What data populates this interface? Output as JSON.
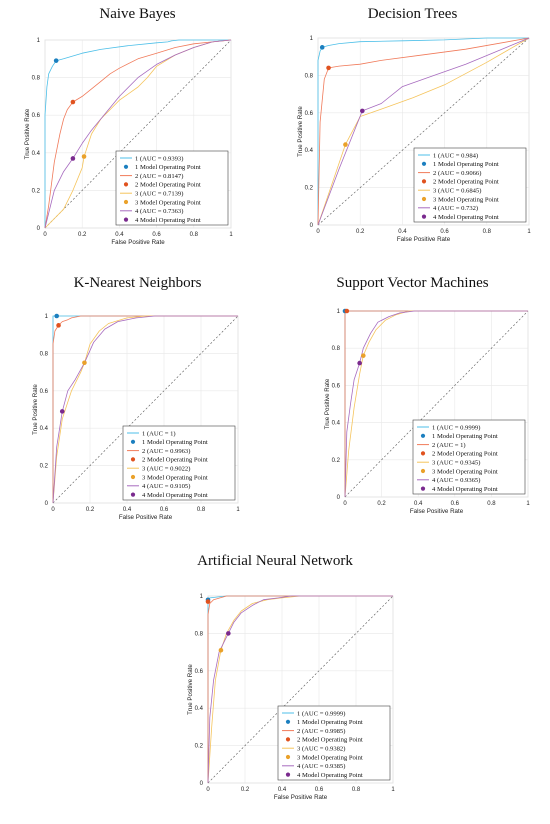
{
  "colors": {
    "model1": "#4cbfe8",
    "model2": "#f07a5a",
    "model3": "#f5c45c",
    "model4": "#a76bbf",
    "op1": "#1b7fbf",
    "op2": "#e0521f",
    "op3": "#eaa12a",
    "op4": "#7a2a8e"
  },
  "chart_data": [
    {
      "type": "line",
      "title": "Naive Bayes",
      "xlabel": "False Positive Rate",
      "ylabel": "True Positive Rate",
      "xlim": [
        0,
        1
      ],
      "ylim": [
        0,
        1
      ],
      "xticks": [
        "0",
        "0.2",
        "0.4",
        "0.6",
        "0.8",
        "1"
      ],
      "yticks": [
        "0",
        "0.2",
        "0.4",
        "0.6",
        "0.8",
        "1"
      ],
      "grid": true,
      "legend_position": "lower-right",
      "series": [
        {
          "name": "1 (AUC = 0.9393)",
          "op_label": "1 Model Operating Point",
          "op": [
            0.06,
            0.89
          ],
          "x": [
            0,
            0,
            0.01,
            0.02,
            0.04,
            0.06,
            0.1,
            0.2,
            0.3,
            0.45,
            0.6,
            0.66,
            0.68,
            0.72,
            0.8,
            0.9,
            1
          ],
          "y": [
            0,
            0.6,
            0.75,
            0.82,
            0.86,
            0.89,
            0.9,
            0.93,
            0.95,
            0.97,
            0.985,
            0.99,
            0.995,
            1,
            1,
            1,
            1
          ]
        },
        {
          "name": "2 (AUC = 0.8147)",
          "op_label": "2 Model Operating Point",
          "op": [
            0.15,
            0.67
          ],
          "x": [
            0,
            0.02,
            0.05,
            0.08,
            0.1,
            0.12,
            0.15,
            0.2,
            0.25,
            0.3,
            0.35,
            0.4,
            0.5,
            0.6,
            0.7,
            0.8,
            0.9,
            1
          ],
          "y": [
            0,
            0.12,
            0.35,
            0.5,
            0.58,
            0.63,
            0.67,
            0.7,
            0.74,
            0.78,
            0.82,
            0.85,
            0.9,
            0.93,
            0.96,
            0.98,
            0.99,
            1
          ]
        },
        {
          "name": "3 (AUC = 0.7139)",
          "op_label": "3 Model Operating Point",
          "op": [
            0.21,
            0.38
          ],
          "x": [
            0,
            0.05,
            0.1,
            0.15,
            0.2,
            0.21,
            0.25,
            0.3,
            0.35,
            0.4,
            0.5,
            0.55,
            0.6,
            0.7,
            0.8,
            0.9,
            1
          ],
          "y": [
            0,
            0.05,
            0.1,
            0.2,
            0.32,
            0.38,
            0.5,
            0.58,
            0.63,
            0.68,
            0.75,
            0.8,
            0.86,
            0.92,
            0.96,
            0.99,
            1
          ]
        },
        {
          "name": "4 (AUC = 0.7363)",
          "op_label": "4 Model Operating Point",
          "op": [
            0.15,
            0.37
          ],
          "x": [
            0,
            0.02,
            0.05,
            0.1,
            0.15,
            0.2,
            0.25,
            0.3,
            0.4,
            0.5,
            0.6,
            0.7,
            0.8,
            0.9,
            1
          ],
          "y": [
            0,
            0.08,
            0.2,
            0.3,
            0.37,
            0.45,
            0.52,
            0.58,
            0.7,
            0.8,
            0.87,
            0.92,
            0.96,
            0.99,
            1
          ]
        }
      ]
    },
    {
      "type": "line",
      "title": "Decision Trees",
      "xlabel": "False Positive Rate",
      "ylabel": "True Positive Rate",
      "xlim": [
        0,
        1
      ],
      "ylim": [
        0,
        1
      ],
      "xticks": [
        "0",
        "0.2",
        "0.4",
        "0.6",
        "0.8",
        "1"
      ],
      "yticks": [
        "0",
        "0.2",
        "0.4",
        "0.6",
        "0.8",
        "1"
      ],
      "grid": true,
      "legend_position": "lower-right",
      "series": [
        {
          "name": "1 (AUC = 0.984)",
          "op_label": "1 Model Operating Point",
          "op": [
            0.02,
            0.95
          ],
          "x": [
            0,
            0,
            0.01,
            0.02,
            0.05,
            0.1,
            0.2,
            0.4,
            0.6,
            0.8,
            1
          ],
          "y": [
            0,
            0.88,
            0.93,
            0.95,
            0.96,
            0.97,
            0.98,
            0.985,
            0.99,
            1,
            1
          ]
        },
        {
          "name": "2 (AUC = 0.9066)",
          "op_label": "2 Model Operating Point",
          "op": [
            0.05,
            0.84
          ],
          "x": [
            0,
            0.01,
            0.03,
            0.05,
            0.1,
            0.2,
            0.3,
            0.5,
            0.7,
            1
          ],
          "y": [
            0,
            0.55,
            0.78,
            0.84,
            0.85,
            0.86,
            0.88,
            0.91,
            0.94,
            1
          ]
        },
        {
          "name": "3 (AUC = 0.6845)",
          "op_label": "3 Model Operating Point",
          "op": [
            0.13,
            0.43
          ],
          "x": [
            0,
            0.13,
            0.2,
            0.3,
            0.45,
            0.6,
            0.8,
            1
          ],
          "y": [
            0,
            0.43,
            0.58,
            0.62,
            0.68,
            0.75,
            0.87,
            1
          ]
        },
        {
          "name": "4 (AUC = 0.732)",
          "op_label": "4 Model Operating Point",
          "op": [
            0.21,
            0.61
          ],
          "x": [
            0,
            0.1,
            0.21,
            0.3,
            0.4,
            0.55,
            0.7,
            0.85,
            1
          ],
          "y": [
            0,
            0.3,
            0.61,
            0.65,
            0.74,
            0.8,
            0.86,
            0.93,
            1
          ]
        }
      ]
    },
    {
      "type": "line",
      "title": "K-Nearest Neighbors",
      "xlabel": "False Positive Rate",
      "ylabel": "True Positive Rate",
      "xlim": [
        0,
        1
      ],
      "ylim": [
        0,
        1
      ],
      "xticks": [
        "0",
        "0.2",
        "0.4",
        "0.6",
        "0.8",
        "1"
      ],
      "yticks": [
        "0",
        "0.2",
        "0.4",
        "0.6",
        "0.8",
        "1"
      ],
      "grid": true,
      "legend_position": "lower-right",
      "series": [
        {
          "name": "1 (AUC = 1)",
          "op_label": "1 Model Operating Point",
          "op": [
            0.02,
            1.0
          ],
          "x": [
            0,
            0,
            0.02,
            1
          ],
          "y": [
            0,
            1,
            1,
            1
          ]
        },
        {
          "name": "2 (AUC = 0.9963)",
          "op_label": "2 Model Operating Point",
          "op": [
            0.03,
            0.95
          ],
          "x": [
            0,
            0,
            0.01,
            0.03,
            0.05,
            0.08,
            0.1,
            0.15,
            1
          ],
          "y": [
            0,
            0.85,
            0.92,
            0.95,
            0.97,
            0.98,
            0.99,
            1,
            1
          ]
        },
        {
          "name": "3 (AUC = 0.9022)",
          "op_label": "3 Model Operating Point",
          "op": [
            0.17,
            0.75
          ],
          "x": [
            0,
            0.02,
            0.05,
            0.1,
            0.15,
            0.17,
            0.2,
            0.25,
            0.3,
            0.4,
            0.5,
            1
          ],
          "y": [
            0,
            0.25,
            0.45,
            0.6,
            0.7,
            0.75,
            0.85,
            0.92,
            0.96,
            0.99,
            1,
            1
          ]
        },
        {
          "name": "4 (AUC = 0.9105)",
          "op_label": "4 Model Operating Point",
          "op": [
            0.05,
            0.49
          ],
          "x": [
            0,
            0.02,
            0.05,
            0.08,
            0.12,
            0.17,
            0.22,
            0.28,
            0.35,
            0.45,
            0.55,
            1
          ],
          "y": [
            0,
            0.3,
            0.49,
            0.6,
            0.66,
            0.75,
            0.86,
            0.93,
            0.97,
            0.99,
            1,
            1
          ]
        }
      ]
    },
    {
      "type": "line",
      "title": "Support Vector Machines",
      "xlabel": "False Positive Rate",
      "ylabel": "True Positive Rate",
      "xlim": [
        0,
        1
      ],
      "ylim": [
        0,
        1
      ],
      "xticks": [
        "0",
        "0.2",
        "0.4",
        "0.6",
        "0.8",
        "1"
      ],
      "yticks": [
        "0",
        "0.2",
        "0.4",
        "0.6",
        "0.8",
        "1"
      ],
      "grid": true,
      "legend_position": "lower-right",
      "series": [
        {
          "name": "1 (AUC = 0.9999)",
          "op_label": "1 Model Operating Point",
          "op": [
            0.0,
            1.0
          ],
          "x": [
            0,
            0,
            0.01,
            1
          ],
          "y": [
            0,
            0.99,
            1,
            1
          ]
        },
        {
          "name": "2 (AUC = 1)",
          "op_label": "2 Model Operating Point",
          "op": [
            0.01,
            1.0
          ],
          "x": [
            0,
            0,
            1
          ],
          "y": [
            0,
            1,
            1
          ]
        },
        {
          "name": "3 (AUC = 0.9345)",
          "op_label": "3 Model Operating Point",
          "op": [
            0.1,
            0.76
          ],
          "x": [
            0,
            0.02,
            0.05,
            0.08,
            0.1,
            0.13,
            0.17,
            0.22,
            0.28,
            0.35,
            0.4,
            1
          ],
          "y": [
            0,
            0.25,
            0.48,
            0.66,
            0.76,
            0.83,
            0.9,
            0.95,
            0.98,
            1,
            1,
            1
          ]
        },
        {
          "name": "4 (AUC = 0.9365)",
          "op_label": "4 Model Operating Point",
          "op": [
            0.08,
            0.72
          ],
          "x": [
            0,
            0.01,
            0.03,
            0.05,
            0.08,
            0.1,
            0.14,
            0.18,
            0.24,
            0.3,
            0.38,
            1
          ],
          "y": [
            0,
            0.35,
            0.5,
            0.63,
            0.72,
            0.8,
            0.88,
            0.94,
            0.97,
            0.99,
            1,
            1
          ]
        }
      ]
    },
    {
      "type": "line",
      "title": "Artificial Neural Network",
      "xlabel": "False Positive Rate",
      "ylabel": "True Positive Rate",
      "xlim": [
        0,
        1
      ],
      "ylim": [
        0,
        1
      ],
      "xticks": [
        "0",
        "0.2",
        "0.4",
        "0.6",
        "0.8",
        "1"
      ],
      "yticks": [
        "0",
        "0.2",
        "0.4",
        "0.6",
        "0.8",
        "1"
      ],
      "grid": true,
      "legend_position": "lower-right",
      "series": [
        {
          "name": "1 (AUC = 0.9999)",
          "op_label": "1 Model Operating Point",
          "op": [
            0.0,
            0.98
          ],
          "x": [
            0,
            0,
            0.01,
            0.1,
            1
          ],
          "y": [
            0,
            0.98,
            0.99,
            1,
            1
          ]
        },
        {
          "name": "2 (AUC = 0.9985)",
          "op_label": "2 Model Operating Point",
          "op": [
            0.0,
            0.97
          ],
          "x": [
            0,
            0,
            0.01,
            0.03,
            0.1,
            1
          ],
          "y": [
            0,
            0.9,
            0.96,
            0.98,
            1,
            1
          ]
        },
        {
          "name": "3 (AUC = 0.9382)",
          "op_label": "3 Model Operating Point",
          "op": [
            0.07,
            0.71
          ],
          "x": [
            0,
            0.02,
            0.04,
            0.07,
            0.1,
            0.14,
            0.18,
            0.24,
            0.32,
            0.4,
            0.5,
            1
          ],
          "y": [
            0,
            0.3,
            0.55,
            0.71,
            0.8,
            0.87,
            0.92,
            0.96,
            0.98,
            0.99,
            1,
            1
          ]
        },
        {
          "name": "4 (AUC = 0.9385)",
          "op_label": "4 Model Operating Point",
          "op": [
            0.11,
            0.8
          ],
          "x": [
            0,
            0.01,
            0.03,
            0.06,
            0.11,
            0.14,
            0.18,
            0.24,
            0.3,
            0.38,
            0.45,
            1
          ],
          "y": [
            0,
            0.35,
            0.55,
            0.7,
            0.8,
            0.86,
            0.91,
            0.95,
            0.98,
            0.99,
            1,
            1
          ]
        }
      ]
    }
  ]
}
